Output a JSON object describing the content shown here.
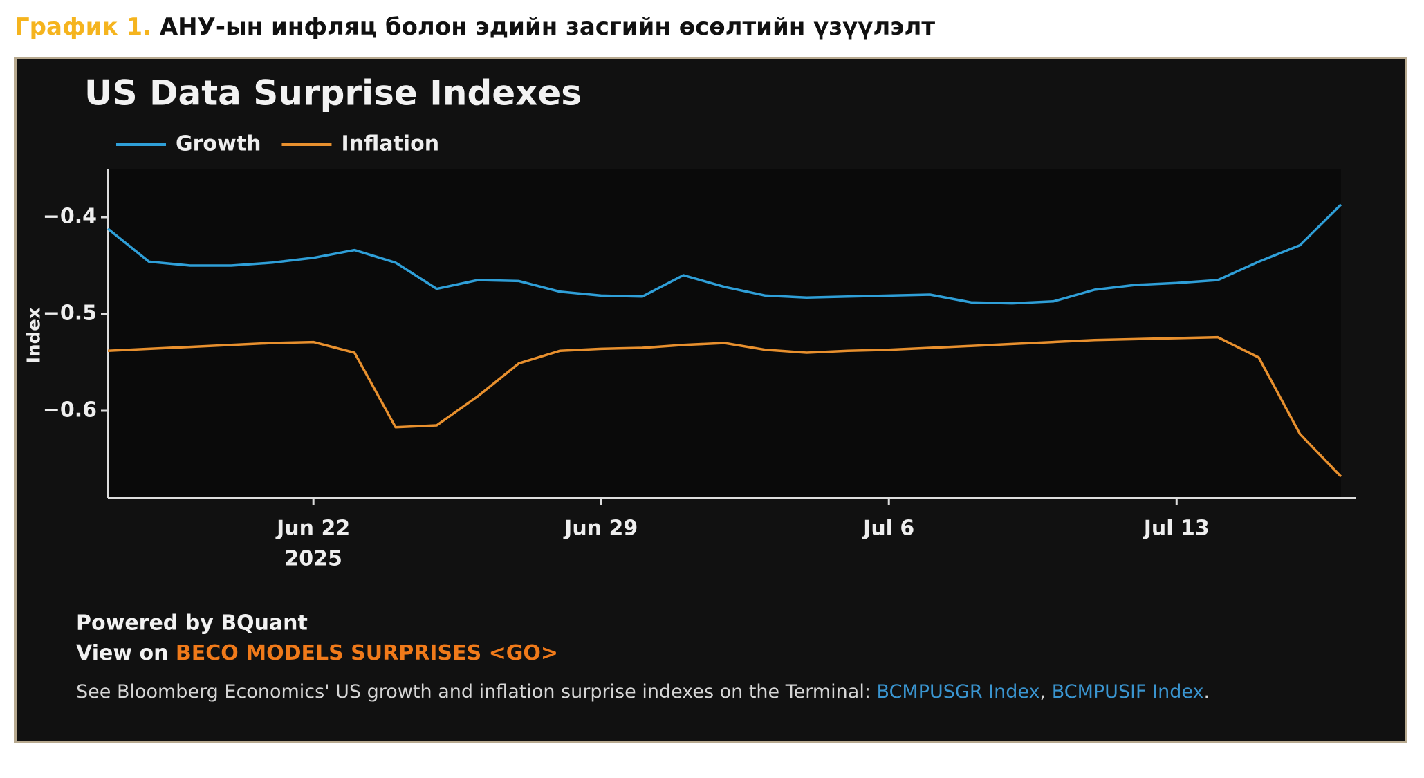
{
  "header": {
    "label": "График 1.",
    "title": "АНУ-ын инфляц болон эдийн засгийн өсөлтийн үзүүлэлт"
  },
  "chart_data": {
    "type": "line",
    "title": "US Data Surprise Indexes",
    "y_label": "Index",
    "x": [
      "2025-06-17",
      "2025-06-18",
      "2025-06-19",
      "2025-06-20",
      "2025-06-21",
      "2025-06-22",
      "2025-06-23",
      "2025-06-24",
      "2025-06-25",
      "2025-06-26",
      "2025-06-27",
      "2025-06-28",
      "2025-06-29",
      "2025-06-30",
      "2025-07-01",
      "2025-07-02",
      "2025-07-03",
      "2025-07-04",
      "2025-07-05",
      "2025-07-06",
      "2025-07-07",
      "2025-07-08",
      "2025-07-09",
      "2025-07-10",
      "2025-07-11",
      "2025-07-12",
      "2025-07-13",
      "2025-07-14",
      "2025-07-15",
      "2025-07-16",
      "2025-07-17"
    ],
    "series": [
      {
        "name": "Growth",
        "color": "#2f9fd8",
        "values": [
          -0.412,
          -0.446,
          -0.45,
          -0.45,
          -0.447,
          -0.442,
          -0.434,
          -0.447,
          -0.474,
          -0.465,
          -0.466,
          -0.477,
          -0.481,
          -0.482,
          -0.46,
          -0.472,
          -0.481,
          -0.483,
          -0.482,
          -0.481,
          -0.48,
          -0.488,
          -0.489,
          -0.487,
          -0.475,
          -0.47,
          -0.468,
          -0.465,
          -0.446,
          -0.429,
          -0.387
        ]
      },
      {
        "name": "Inflation",
        "color": "#e8902e",
        "values": [
          -0.538,
          -0.536,
          -0.534,
          -0.532,
          -0.53,
          -0.529,
          -0.54,
          -0.617,
          -0.615,
          -0.585,
          -0.551,
          -0.538,
          -0.536,
          -0.535,
          -0.532,
          -0.53,
          -0.537,
          -0.54,
          -0.538,
          -0.537,
          -0.535,
          -0.533,
          -0.531,
          -0.529,
          -0.527,
          -0.526,
          -0.525,
          -0.524,
          -0.545,
          -0.624,
          -0.668
        ]
      }
    ],
    "xlim": [
      "2025-06-17",
      "2025-07-17"
    ],
    "xticks": [
      {
        "value": "2025-06-22",
        "label": "Jun 22"
      },
      {
        "value": "2025-06-29",
        "label": "Jun 29"
      },
      {
        "value": "2025-07-06",
        "label": "Jul 6"
      },
      {
        "value": "2025-07-13",
        "label": "Jul 13"
      }
    ],
    "x_year_label": "2025",
    "ylim": [
      -0.69,
      -0.35
    ],
    "yticks": [
      {
        "value": -0.4,
        "label": "−0.4"
      },
      {
        "value": -0.5,
        "label": "−0.5"
      },
      {
        "value": -0.6,
        "label": "−0.6"
      }
    ],
    "legend": "top-left",
    "grid": false
  },
  "footer": {
    "powered": "Powered by BQuant",
    "view_prefix": "View on",
    "view_link": "BECO MODELS SURPRISES <GO>",
    "note": "See Bloomberg Economics' US growth and inflation surprise indexes on the Terminal:",
    "link1": "BCMPUSGR Index",
    "sep": ",",
    "link2": "BCMPUSIF Index",
    "end": "."
  }
}
